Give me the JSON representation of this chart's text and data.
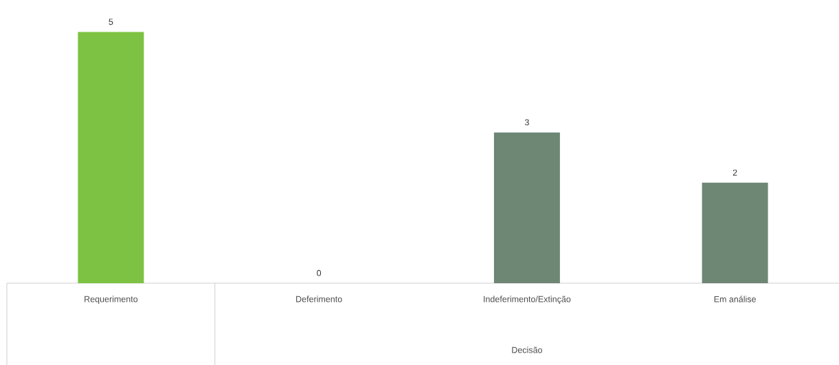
{
  "chart_data": {
    "type": "bar",
    "categories": [
      "Requerimento",
      "Deferimento",
      "Indeferimento/Extinção",
      "Em análise"
    ],
    "values": [
      5,
      0,
      3,
      2
    ],
    "colors": [
      "#7dc242",
      "#6e8674",
      "#6e8674",
      "#6e8674"
    ],
    "xlabel": "Decisão",
    "data_labels": true
  }
}
